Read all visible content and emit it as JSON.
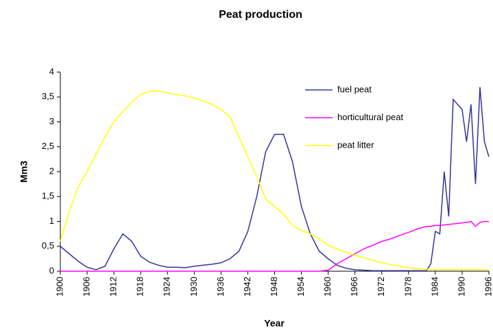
{
  "chart_data": {
    "type": "line",
    "title": "Peat production",
    "xlabel": "Year",
    "ylabel": "Mm3",
    "x": [
      1900,
      1902,
      1904,
      1906,
      1908,
      1910,
      1912,
      1914,
      1916,
      1918,
      1920,
      1922,
      1924,
      1926,
      1928,
      1930,
      1932,
      1934,
      1936,
      1938,
      1940,
      1942,
      1944,
      1946,
      1948,
      1950,
      1952,
      1954,
      1956,
      1958,
      1960,
      1962,
      1964,
      1966,
      1968,
      1970,
      1972,
      1974,
      1976,
      1978,
      1980,
      1982,
      1983,
      1984,
      1985,
      1986,
      1987,
      1988,
      1989,
      1990,
      1991,
      1992,
      1993,
      1994,
      1995,
      1996
    ],
    "series": [
      {
        "name": "fuel peat",
        "color": "#333399",
        "values": [
          0.5,
          0.35,
          0.2,
          0.08,
          0.03,
          0.1,
          0.45,
          0.75,
          0.6,
          0.3,
          0.18,
          0.12,
          0.08,
          0.08,
          0.07,
          0.1,
          0.12,
          0.14,
          0.17,
          0.25,
          0.4,
          0.8,
          1.5,
          2.4,
          2.75,
          2.75,
          2.2,
          1.3,
          0.75,
          0.4,
          0.25,
          0.12,
          0.06,
          0.03,
          0.02,
          0.01,
          0.01,
          0.01,
          0.01,
          0.01,
          0.01,
          0.01,
          0.15,
          0.8,
          0.75,
          2.0,
          1.1,
          3.45,
          3.35,
          3.25,
          2.6,
          3.35,
          1.75,
          3.7,
          2.6,
          2.3
        ]
      },
      {
        "name": "horticultural peat",
        "color": "#ff00ff",
        "values": [
          0,
          0,
          0,
          0,
          0,
          0,
          0,
          0,
          0,
          0,
          0,
          0,
          0,
          0,
          0,
          0,
          0,
          0,
          0,
          0,
          0,
          0,
          0,
          0,
          0,
          0,
          0,
          0,
          0,
          0,
          0.02,
          0.15,
          0.25,
          0.35,
          0.45,
          0.52,
          0.6,
          0.65,
          0.72,
          0.78,
          0.85,
          0.9,
          0.9,
          0.92,
          0.92,
          0.93,
          0.94,
          0.95,
          0.96,
          0.97,
          0.98,
          1.0,
          0.9,
          0.98,
          1.0,
          1.0
        ]
      },
      {
        "name": "peat litter",
        "color": "#ffff00",
        "values": [
          0.6,
          1.2,
          1.7,
          2.0,
          2.35,
          2.7,
          3.0,
          3.2,
          3.4,
          3.55,
          3.62,
          3.62,
          3.58,
          3.55,
          3.52,
          3.48,
          3.42,
          3.35,
          3.25,
          3.1,
          2.7,
          2.3,
          1.9,
          1.45,
          1.3,
          1.15,
          0.92,
          0.82,
          0.75,
          0.65,
          0.52,
          0.45,
          0.38,
          0.32,
          0.27,
          0.22,
          0.17,
          0.13,
          0.1,
          0.07,
          0.05,
          0.04,
          0.03,
          0.03,
          0.03,
          0.03,
          0.03,
          0.03,
          0.03,
          0.03,
          0.03,
          0.03,
          0.03,
          0.03,
          0.03,
          0.03
        ]
      }
    ],
    "xlim": [
      1900,
      1996
    ],
    "xticks": [
      1900,
      1906,
      1912,
      1918,
      1924,
      1930,
      1936,
      1942,
      1948,
      1954,
      1960,
      1966,
      1972,
      1978,
      1984,
      1990,
      1996
    ],
    "ylim": [
      0,
      4
    ],
    "yticks": [
      0,
      {
        "value": 0.5,
        "label": "0,5"
      },
      1,
      {
        "value": 1.5,
        "label": "1,5"
      },
      2,
      {
        "value": 2.5,
        "label": "2,5"
      },
      3,
      {
        "value": 3.5,
        "label": "3,5"
      },
      4
    ],
    "legend": "upper right"
  }
}
